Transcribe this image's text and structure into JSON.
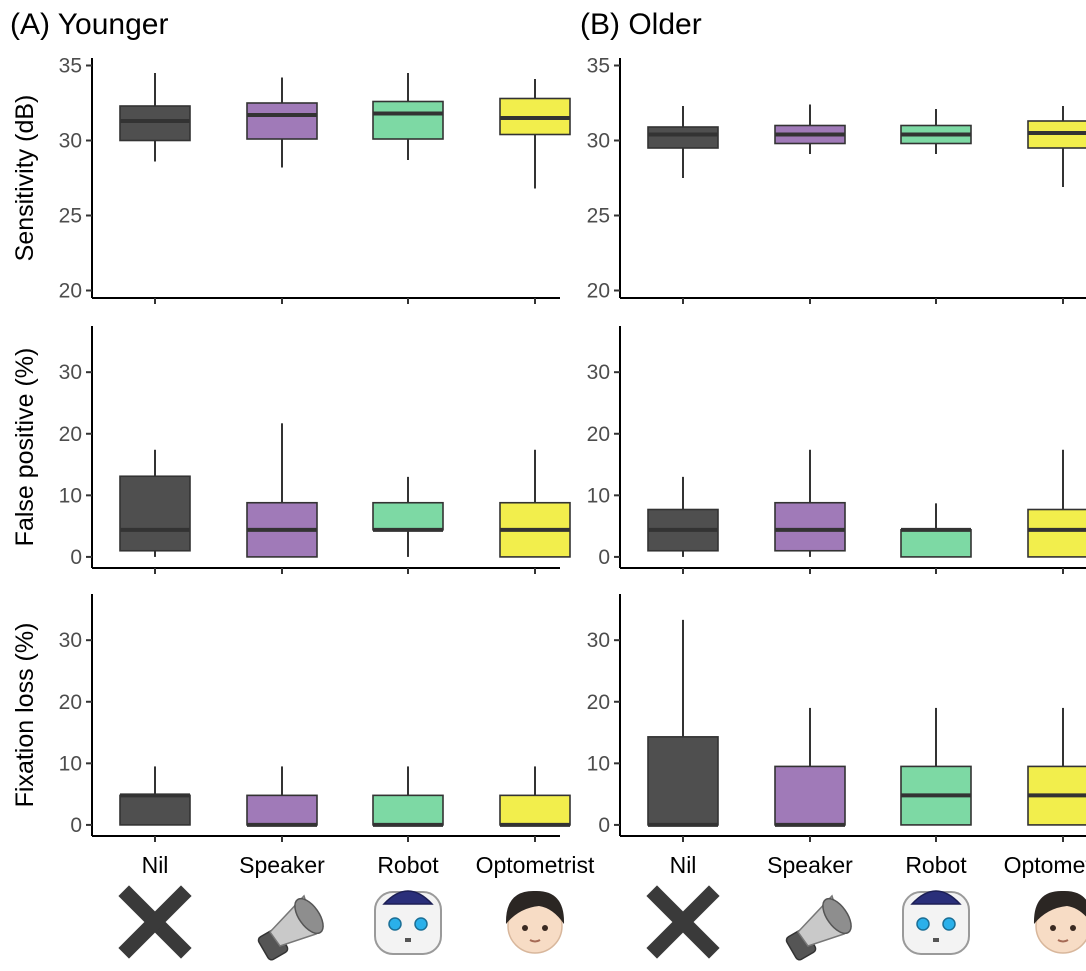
{
  "chart_data": {
    "type": "box",
    "panel_titles": [
      "(A) Younger",
      "(B) Older"
    ],
    "categories": [
      "Nil",
      "Speaker",
      "Robot",
      "Optometrist"
    ],
    "colors": {
      "Nil": "#4f4f4f",
      "Speaker": "#a07ab8",
      "Robot": "#7dd9a4",
      "Optometrist": "#f2ee4c"
    },
    "icons": [
      "x-mark-icon",
      "speaker-icon",
      "robot-icon",
      "person-icon"
    ],
    "rows": [
      {
        "ylabel": "Sensitivity (dB)",
        "ylim": [
          19.5,
          35.5
        ],
        "yticks": [
          20,
          25,
          30,
          35
        ],
        "groups": [
          {
            "boxes": [
              {
                "min": 28.6,
                "q1": 30.0,
                "median": 31.3,
                "q3": 32.3,
                "max": 34.5
              },
              {
                "min": 28.2,
                "q1": 30.1,
                "median": 31.7,
                "q3": 32.5,
                "max": 34.2
              },
              {
                "min": 28.7,
                "q1": 30.1,
                "median": 31.8,
                "q3": 32.6,
                "max": 34.5
              },
              {
                "min": 26.8,
                "q1": 30.4,
                "median": 31.5,
                "q3": 32.8,
                "max": 34.1
              }
            ]
          },
          {
            "boxes": [
              {
                "min": 27.5,
                "q1": 29.5,
                "median": 30.4,
                "q3": 30.9,
                "max": 32.3
              },
              {
                "min": 29.1,
                "q1": 29.8,
                "median": 30.4,
                "q3": 31.0,
                "max": 32.4
              },
              {
                "min": 29.1,
                "q1": 29.8,
                "median": 30.4,
                "q3": 31.0,
                "max": 32.1
              },
              {
                "min": 26.9,
                "q1": 29.5,
                "median": 30.5,
                "q3": 31.3,
                "max": 32.3
              }
            ]
          }
        ]
      },
      {
        "ylabel": "False positive (%)",
        "ylim": [
          -1.8,
          37.5
        ],
        "yticks": [
          0,
          10,
          20,
          30
        ],
        "groups": [
          {
            "boxes": [
              {
                "min": 0.0,
                "q1": 1.0,
                "median": 4.4,
                "q3": 13.1,
                "max": 17.4
              },
              {
                "min": 0.0,
                "q1": 0.0,
                "median": 4.4,
                "q3": 8.8,
                "max": 21.7
              },
              {
                "min": 0.0,
                "q1": 4.4,
                "median": 4.4,
                "q3": 8.8,
                "max": 13.0
              },
              {
                "min": 0.0,
                "q1": 0.0,
                "median": 4.4,
                "q3": 8.8,
                "max": 17.4
              }
            ]
          },
          {
            "boxes": [
              {
                "min": 0.0,
                "q1": 1.0,
                "median": 4.4,
                "q3": 7.7,
                "max": 13.0
              },
              {
                "min": 0.0,
                "q1": 1.0,
                "median": 4.4,
                "q3": 8.8,
                "max": 17.4
              },
              {
                "min": 0.0,
                "q1": 0.0,
                "median": 4.4,
                "q3": 4.4,
                "max": 8.7
              },
              {
                "min": 0.0,
                "q1": 0.0,
                "median": 4.4,
                "q3": 7.7,
                "max": 17.4
              }
            ]
          }
        ]
      },
      {
        "ylabel": "Fixation loss (%)",
        "ylim": [
          -1.8,
          37.5
        ],
        "yticks": [
          0,
          10,
          20,
          30
        ],
        "groups": [
          {
            "boxes": [
              {
                "min": 0.0,
                "q1": 0.0,
                "median": 4.8,
                "q3": 4.8,
                "max": 9.5
              },
              {
                "min": 0.0,
                "q1": 0.0,
                "median": 0.0,
                "q3": 4.8,
                "max": 9.5
              },
              {
                "min": 0.0,
                "q1": 0.0,
                "median": 0.0,
                "q3": 4.8,
                "max": 9.5
              },
              {
                "min": 0.0,
                "q1": 0.0,
                "median": 0.0,
                "q3": 4.8,
                "max": 9.5
              }
            ]
          },
          {
            "boxes": [
              {
                "min": 0.0,
                "q1": 0.0,
                "median": 0.0,
                "q3": 14.3,
                "max": 33.3
              },
              {
                "min": 0.0,
                "q1": 0.0,
                "median": 0.0,
                "q3": 9.5,
                "max": 19.0
              },
              {
                "min": 0.0,
                "q1": 0.0,
                "median": 4.8,
                "q3": 9.5,
                "max": 19.0
              },
              {
                "min": 0.0,
                "q1": 0.0,
                "median": 4.8,
                "q3": 9.5,
                "max": 19.0
              }
            ]
          }
        ]
      }
    ]
  }
}
